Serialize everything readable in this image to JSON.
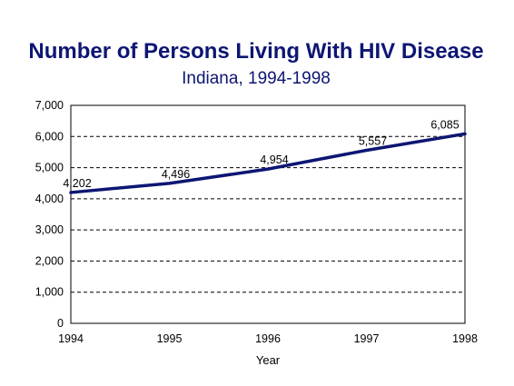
{
  "chart_data": {
    "type": "line",
    "title": "Number of Persons Living With HIV Disease",
    "subtitle": "Indiana, 1994-1998",
    "xlabel": "Year",
    "ylabel": "",
    "x": [
      1994,
      1995,
      1996,
      1997,
      1998
    ],
    "x_tick_labels": [
      "1994",
      "1995",
      "1996",
      "1997",
      "1998"
    ],
    "series": [
      {
        "values": [
          4202,
          4496,
          4954,
          5557,
          6085
        ],
        "labels": [
          "4,202",
          "4,496",
          "4,954",
          "5,557",
          "6,085"
        ]
      }
    ],
    "ylim": [
      0,
      7000
    ],
    "y_ticks": [
      0,
      1000,
      2000,
      3000,
      4000,
      5000,
      6000,
      7000
    ],
    "y_tick_labels": [
      "0",
      "1,000",
      "2,000",
      "3,000",
      "4,000",
      "5,000",
      "6,000",
      "7,000"
    ],
    "grid": "horizontal-dashed",
    "line_color": "#0d1673",
    "title_color": "#0d1673"
  }
}
